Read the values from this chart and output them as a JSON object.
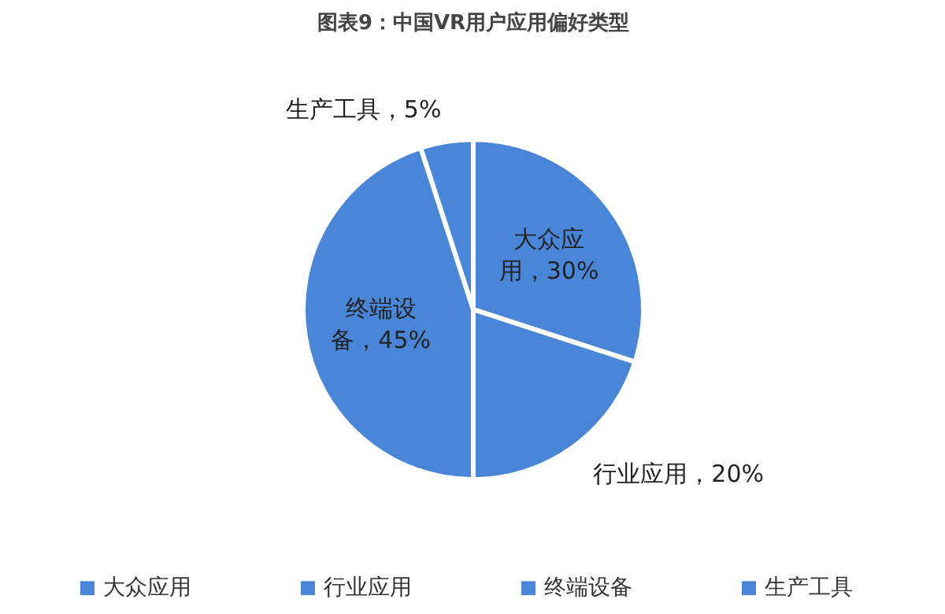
{
  "chart_data": {
    "type": "pie",
    "title": "图表9：中国VR用户应用偏好类型",
    "categories": [
      "大众应用",
      "行业应用",
      "终端设备",
      "生产工具"
    ],
    "values": [
      30,
      20,
      45,
      5
    ],
    "colors": [
      "#4a86d8",
      "#4a86d8",
      "#4a86d8",
      "#4a86d8"
    ],
    "value_labels": [
      "大众应用，30%",
      "行业应用，20%",
      "终端设备，45%",
      "生产工具，5%"
    ],
    "legend": "bottom"
  }
}
